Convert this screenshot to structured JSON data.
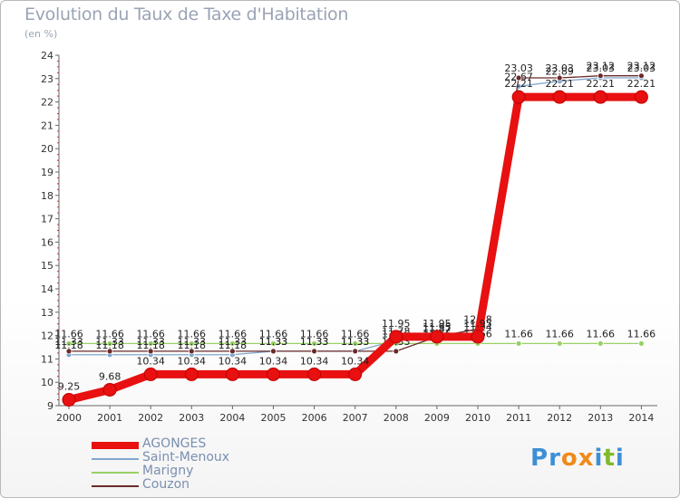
{
  "header": {
    "title": "Evolution du Taux de Taxe d'Habitation",
    "subtitle": "(en %)"
  },
  "logo": {
    "text": "Proxiti"
  },
  "chart_data": {
    "type": "line",
    "title": "Evolution du Taux de Taxe d'Habitation",
    "ylabel": "(en %)",
    "xlabel": "",
    "ylim": [
      9,
      24
    ],
    "yticks": [
      9,
      10,
      11,
      12,
      13,
      14,
      15,
      16,
      17,
      18,
      19,
      20,
      21,
      22,
      23,
      24
    ],
    "categories": [
      "2000",
      "2001",
      "2002",
      "2003",
      "2004",
      "2005",
      "2006",
      "2007",
      "2008",
      "2009",
      "2010",
      "2011",
      "2012",
      "2013",
      "2014"
    ],
    "legend_position": "bottom-left",
    "series": [
      {
        "name": "Saint-Menoux",
        "color": "#7fa7cc",
        "values": [
          11.18,
          11.18,
          11.18,
          11.18,
          11.18,
          11.33,
          11.33,
          11.33,
          11.78,
          11.87,
          11.94,
          22.67,
          22.89,
          23.03,
          23.03
        ],
        "labels": [
          "11.18",
          "11.18",
          "11.18",
          "11.18",
          "11.18",
          "11.33",
          "11.33",
          "11.33",
          "11.78",
          "11.87",
          "11.94",
          "22.67",
          "22.89",
          "23.03",
          "23.03"
        ]
      },
      {
        "name": "Marigny",
        "color": "#99d066",
        "values": [
          11.66,
          11.66,
          11.66,
          11.66,
          11.66,
          11.66,
          11.66,
          11.66,
          11.66,
          11.66,
          11.66,
          11.66,
          11.66,
          11.66,
          11.66
        ],
        "labels": [
          "11.66",
          "11.66",
          "11.66",
          "11.66",
          "11.66",
          "11.66",
          "11.66",
          "11.66",
          "11.66",
          "11.66",
          "11.66",
          "11.66",
          "11.66",
          "11.66",
          "11.66"
        ]
      },
      {
        "name": "Couzon",
        "color": "#6a2a2a",
        "values": [
          11.33,
          11.33,
          11.33,
          11.33,
          11.33,
          11.33,
          11.33,
          11.33,
          11.33,
          11.95,
          12.28,
          23.03,
          23.03,
          23.12,
          23.12
        ],
        "labels": [
          "11.33",
          "11.33",
          "11.33",
          "11.33",
          "11.33",
          "11.33",
          "11.33",
          "11.33",
          "11.33",
          "11.95",
          "12.28",
          "23.03",
          "23.03",
          "23.12",
          "23.12"
        ]
      },
      {
        "name": "AGONGES",
        "color": "#e81010",
        "values": [
          9.25,
          9.68,
          10.34,
          10.34,
          10.34,
          10.34,
          10.34,
          10.34,
          11.95,
          11.95,
          11.95,
          22.21,
          22.21,
          22.21,
          22.21
        ],
        "labels": [
          "9.25",
          "9.68",
          "10.34",
          "10.34",
          "10.34",
          "10.34",
          "10.34",
          "10.34",
          "11.95",
          "11.95",
          "11.95",
          "22.21",
          "22.21",
          "22.21",
          "22.21"
        ]
      }
    ]
  },
  "legend": {
    "items": [
      {
        "label": "AGONGES",
        "color": "#e81010"
      },
      {
        "label": "Saint-Menoux",
        "color": "#7fa7cc"
      },
      {
        "label": "Marigny",
        "color": "#99d066"
      },
      {
        "label": "Couzon",
        "color": "#6a2a2a"
      }
    ]
  }
}
